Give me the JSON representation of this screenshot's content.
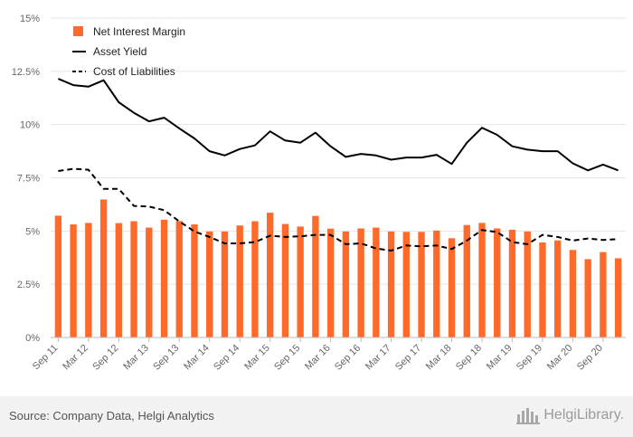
{
  "chart_data": {
    "type": "bar",
    "title": "",
    "xlabel": "",
    "ylabel": "",
    "ylim": [
      0,
      15
    ],
    "yticks": [
      0,
      2.5,
      5,
      7.5,
      10,
      12.5,
      15
    ],
    "ytick_labels": [
      "0%",
      "2.5%",
      "5%",
      "7.5%",
      "10%",
      "12.5%",
      "15%"
    ],
    "grid": true,
    "legend_position": "top-left",
    "categories": [
      "Sep 11",
      "Dec 11",
      "Mar 12",
      "Jun 12",
      "Sep 12",
      "Dec 12",
      "Mar 13",
      "Jun 13",
      "Sep 13",
      "Dec 13",
      "Mar 14",
      "Jun 14",
      "Sep 14",
      "Dec 14",
      "Mar 15",
      "Jun 15",
      "Sep 15",
      "Dec 15",
      "Mar 16",
      "Jun 16",
      "Sep 16",
      "Dec 16",
      "Mar 17",
      "Jun 17",
      "Sep 17",
      "Dec 17",
      "Mar 18",
      "Jun 18",
      "Sep 18",
      "Dec 18",
      "Mar 19",
      "Jun 19",
      "Sep 19",
      "Dec 19",
      "Mar 20",
      "Jun 20",
      "Sep 20",
      "Dec 20"
    ],
    "x_tick_labels": [
      "Sep 11",
      "Mar 12",
      "Sep 12",
      "Mar 13",
      "Sep 13",
      "Mar 14",
      "Sep 14",
      "Mar 15",
      "Sep 15",
      "Mar 16",
      "Sep 16",
      "Mar 17",
      "Sep 17",
      "Mar 18",
      "Sep 18",
      "Mar 19",
      "Sep 19",
      "Mar 20",
      "Sep 20"
    ],
    "series": [
      {
        "name": "Net Interest Margin",
        "kind": "bar",
        "color": "#ff6a2b",
        "values": [
          5.72,
          5.31,
          5.38,
          6.48,
          5.37,
          5.46,
          5.16,
          5.53,
          5.47,
          5.31,
          4.98,
          4.98,
          5.26,
          5.46,
          5.86,
          5.33,
          5.21,
          5.71,
          5.11,
          4.98,
          5.12,
          5.16,
          4.98,
          4.96,
          4.96,
          5.02,
          4.66,
          5.28,
          5.38,
          5.12,
          5.06,
          4.98,
          4.46,
          4.56,
          4.11,
          3.68,
          4.01,
          3.72
        ]
      },
      {
        "name": "Asset Yield",
        "kind": "line",
        "color": "#000000",
        "dash": "solid",
        "values": [
          12.15,
          11.85,
          11.78,
          12.08,
          11.05,
          10.55,
          10.15,
          10.32,
          9.82,
          9.35,
          8.75,
          8.55,
          8.85,
          9.02,
          9.68,
          9.25,
          9.15,
          9.62,
          8.98,
          8.48,
          8.62,
          8.55,
          8.35,
          8.45,
          8.45,
          8.58,
          8.15,
          9.15,
          9.85,
          9.52,
          8.98,
          8.82,
          8.75,
          8.75,
          8.18,
          7.85,
          8.12,
          7.85
        ]
      },
      {
        "name": "Cost of Liabilities",
        "kind": "line",
        "color": "#000000",
        "dash": "dashed",
        "values": [
          7.82,
          7.92,
          7.88,
          6.98,
          6.98,
          6.18,
          6.15,
          5.98,
          5.45,
          4.98,
          4.72,
          4.42,
          4.42,
          4.48,
          4.78,
          4.72,
          4.75,
          4.82,
          4.82,
          4.38,
          4.42,
          4.18,
          4.08,
          4.32,
          4.28,
          4.32,
          4.15,
          4.55,
          5.05,
          4.95,
          4.48,
          4.38,
          4.82,
          4.72,
          4.55,
          4.65,
          4.58,
          4.62
        ]
      }
    ]
  },
  "footer": {
    "source": "Source: Company Data, Helgi Analytics",
    "logo_text": "HelgiLibrary."
  }
}
